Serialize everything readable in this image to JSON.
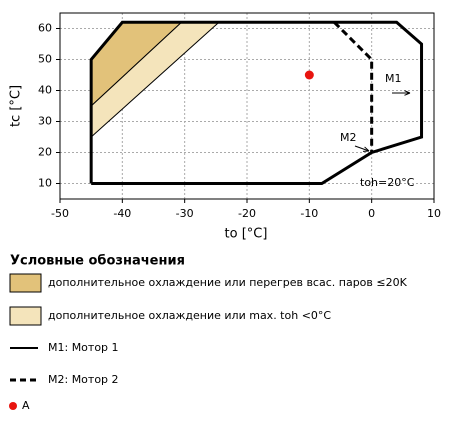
{
  "chart_data": {
    "type": "line",
    "xlabel": "to [°C]",
    "ylabel": "tc [°C]",
    "xlim": [
      -50,
      10
    ],
    "ylim": [
      5,
      65
    ],
    "xticks": [
      -50,
      -40,
      -30,
      -20,
      -10,
      0,
      10
    ],
    "yticks": [
      10,
      20,
      30,
      40,
      50,
      60
    ],
    "grid": true,
    "series": [
      {
        "name": "дополнительное охлаждение или перегрев всас. паров ≤20K",
        "style": "area",
        "color": "#e2c27a",
        "x": [
          -45,
          -40,
          -30.5,
          -45
        ],
        "y": [
          50,
          62,
          62,
          35
        ]
      },
      {
        "name": "дополнительное охлаждение или max. toh <0°C",
        "style": "area",
        "color": "#f4e4bb",
        "x": [
          -45,
          -30.5,
          -24.5,
          -45
        ],
        "y": [
          35,
          62,
          62,
          25
        ]
      },
      {
        "name": "M1: Мотор 1",
        "style": "solid",
        "color": "#000000",
        "x": [
          -45,
          -45,
          -40,
          4,
          8,
          8,
          0,
          -8,
          -45
        ],
        "y": [
          10,
          50,
          62,
          62,
          55,
          25,
          20,
          10,
          10
        ]
      },
      {
        "name": "M2: Мотор 2",
        "style": "dashed",
        "color": "#000000",
        "x": [
          -6,
          0,
          0
        ],
        "y": [
          62,
          50,
          20
        ]
      },
      {
        "name": "A",
        "style": "point",
        "color": "#e8140f",
        "x": [
          -10
        ],
        "y": [
          45
        ]
      }
    ],
    "annotations": [
      "M1",
      "M2",
      "toh=20°C"
    ],
    "legend_title": "Условные обозначения"
  }
}
